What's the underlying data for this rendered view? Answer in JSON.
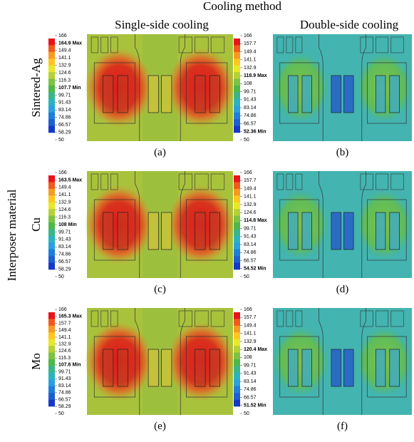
{
  "header": {
    "title": "Cooling method",
    "columns": [
      "Single-side cooling",
      "Double-side cooling"
    ]
  },
  "side_label": "Interposer material",
  "rows": [
    "Sintered-Ag",
    "Cu",
    "Mo"
  ],
  "panels": [
    {
      "caption": "(a)",
      "legend": [
        "166",
        "164.9 Max",
        "149.4",
        "141.1",
        "132.9",
        "124.6",
        "116.3",
        "107.7 Min",
        "99.71",
        "91.43",
        "83.14",
        "74.86",
        "66.57",
        "58.29",
        "50"
      ]
    },
    {
      "caption": "(b)",
      "legend": [
        "166",
        "157.7",
        "149.4",
        "141.1",
        "132.9",
        "118.9 Max",
        "108",
        "99.71",
        "91.43",
        "83.14",
        "74.86",
        "66.57",
        "52.36 Min",
        "50"
      ]
    },
    {
      "caption": "(c)",
      "legend": [
        "166",
        "163.5 Max",
        "149.4",
        "141.1",
        "132.9",
        "124.6",
        "116.3",
        "108 Min",
        "99.71",
        "91.43",
        "83.14",
        "74.86",
        "66.57",
        "58.29",
        "50"
      ]
    },
    {
      "caption": "(d)",
      "legend": [
        "166",
        "157.7",
        "149.4",
        "141.1",
        "132.9",
        "124.6",
        "114.8 Max",
        "99.71",
        "91.43",
        "83.14",
        "74.86",
        "66.57",
        "54.52 Min",
        "50"
      ]
    },
    {
      "caption": "(e)",
      "legend": [
        "166",
        "165.3 Max",
        "157.7",
        "149.4",
        "141.1",
        "132.9",
        "124.6",
        "116.3",
        "107.6 Min",
        "99.71",
        "91.43",
        "83.14",
        "74.86",
        "66.57",
        "58.29",
        "50"
      ]
    },
    {
      "caption": "(f)",
      "legend": [
        "166",
        "157.7",
        "149.4",
        "141.1",
        "132.9",
        "120.4 Max",
        "108",
        "99.71",
        "91.43",
        "83.14",
        "74.86",
        "66.57",
        "51.52 Min",
        "50"
      ]
    }
  ]
}
